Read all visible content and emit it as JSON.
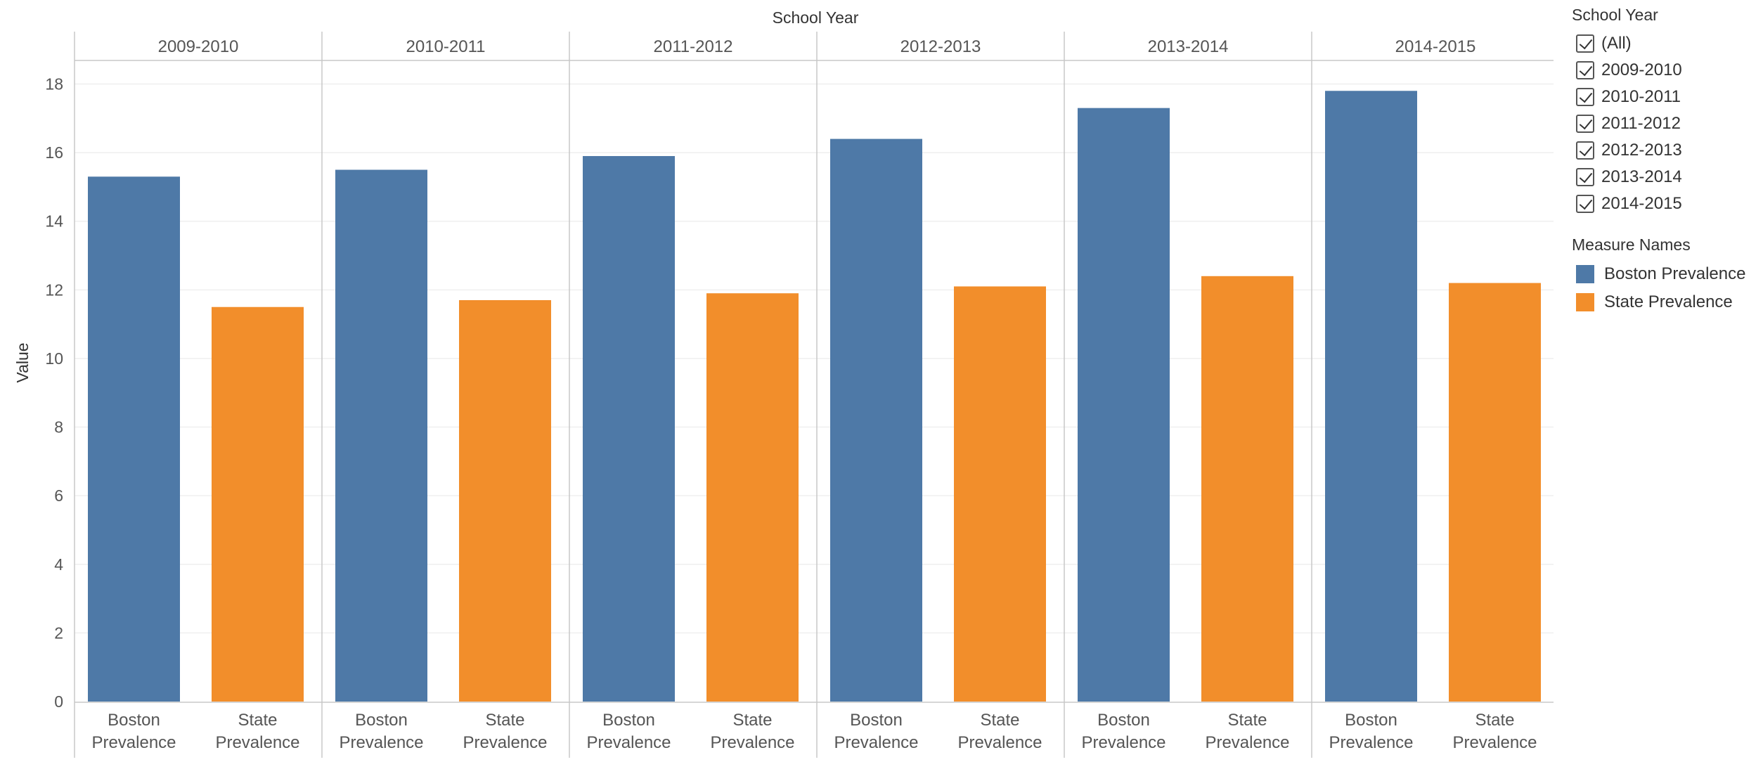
{
  "chart_data": {
    "type": "bar",
    "title": "School Year",
    "xlabel": "",
    "ylabel": "Value",
    "ylim": [
      0,
      19
    ],
    "yticks": [
      0,
      2,
      4,
      6,
      8,
      10,
      12,
      14,
      16,
      18
    ],
    "grid": true,
    "panels": [
      "2009-2010",
      "2010-2011",
      "2011-2012",
      "2012-2013",
      "2013-2014",
      "2014-2015"
    ],
    "series": [
      {
        "name": "Boston Prevalence",
        "label_lines": [
          "Boston",
          "Prevalence"
        ],
        "color": "#4e79a7",
        "values": [
          15.3,
          15.5,
          15.9,
          16.4,
          17.3,
          17.8
        ]
      },
      {
        "name": "State Prevalence",
        "label_lines": [
          "State",
          "Prevalence"
        ],
        "color": "#f28e2b",
        "values": [
          11.5,
          11.7,
          11.9,
          12.1,
          12.4,
          12.2
        ]
      }
    ],
    "legend_position": "right"
  },
  "legend": {
    "filter_title": "School Year",
    "filter_items": [
      "(All)",
      "2009-2010",
      "2010-2011",
      "2011-2012",
      "2012-2013",
      "2013-2014",
      "2014-2015"
    ],
    "color_title": "Measure Names",
    "color_items": [
      {
        "label": "Boston Prevalence",
        "color": "#4e79a7"
      },
      {
        "label": "State Prevalence",
        "color": "#f28e2b"
      }
    ]
  }
}
